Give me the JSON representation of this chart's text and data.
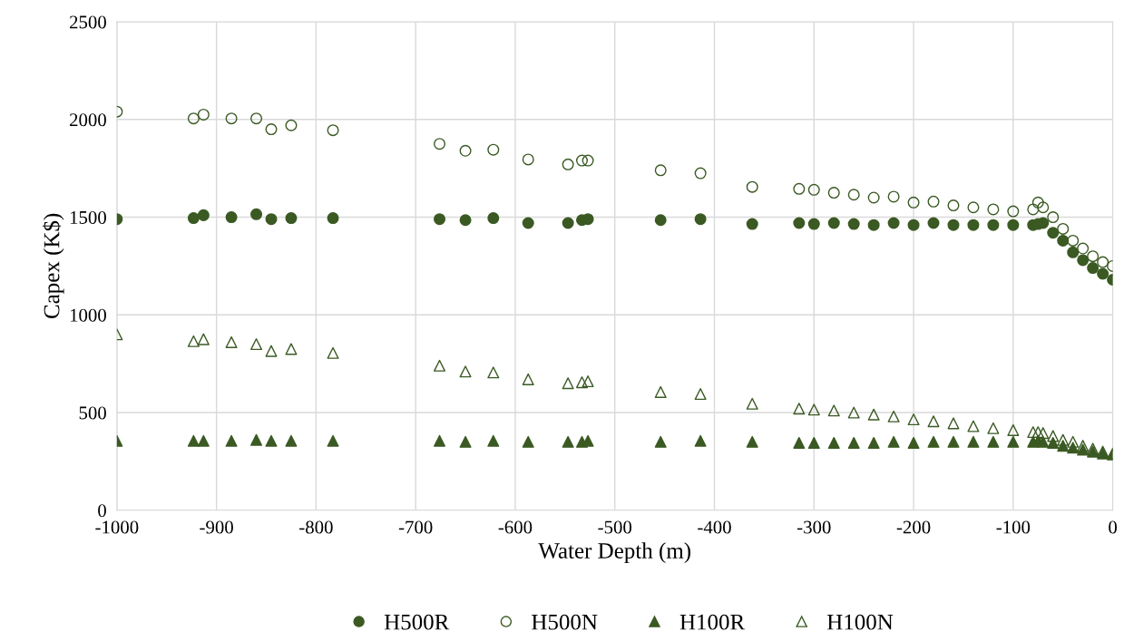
{
  "chart_data": {
    "type": "scatter",
    "xlabel": "Water Depth (m)",
    "ylabel": "Capex (K$)",
    "x": [
      -1000,
      -923,
      -913,
      -885,
      -860,
      -845,
      -825,
      -783,
      -676,
      -650,
      -622,
      -587,
      -547,
      -533,
      -527,
      -454,
      -414,
      -362,
      -315,
      -300,
      -280,
      -260,
      -240,
      -220,
      -200,
      -180,
      -160,
      -140,
      -120,
      -100,
      -80,
      -75,
      -70,
      -60,
      -50,
      -40,
      -30,
      -20,
      -10,
      0
    ],
    "series": [
      {
        "name": "H500R",
        "color": "#3b5a23",
        "marker": "circle",
        "values": [
          1490,
          1495,
          1510,
          1500,
          1515,
          1490,
          1495,
          1495,
          1490,
          1485,
          1495,
          1470,
          1470,
          1485,
          1490,
          1485,
          1490,
          1465,
          1470,
          1465,
          1470,
          1465,
          1460,
          1470,
          1460,
          1470,
          1460,
          1460,
          1460,
          1460,
          1460,
          1465,
          1470,
          1420,
          1380,
          1320,
          1280,
          1240,
          1210,
          1180
        ]
      },
      {
        "name": "H500N",
        "color": "#3b5a23",
        "marker": "circle",
        "values": [
          2040,
          2005,
          2025,
          2005,
          2005,
          1950,
          1970,
          1945,
          1875,
          1840,
          1845,
          1795,
          1770,
          1790,
          1790,
          1740,
          1725,
          1655,
          1645,
          1640,
          1625,
          1615,
          1600,
          1605,
          1575,
          1580,
          1560,
          1550,
          1540,
          1530,
          1540,
          1575,
          1550,
          1500,
          1440,
          1380,
          1340,
          1300,
          1270,
          1250
        ]
      },
      {
        "name": "H100R",
        "color": "#3b5a23",
        "marker": "triangle",
        "values": [
          355,
          355,
          355,
          355,
          360,
          355,
          355,
          355,
          355,
          350,
          355,
          350,
          350,
          350,
          355,
          350,
          355,
          350,
          345,
          345,
          345,
          345,
          345,
          350,
          345,
          350,
          350,
          350,
          350,
          350,
          350,
          355,
          350,
          345,
          330,
          320,
          310,
          300,
          290,
          285
        ]
      },
      {
        "name": "H100N",
        "color": "#3b5a23",
        "marker": "triangle",
        "values": [
          900,
          865,
          875,
          860,
          850,
          815,
          825,
          805,
          740,
          710,
          705,
          670,
          650,
          655,
          660,
          605,
          595,
          545,
          520,
          515,
          510,
          500,
          490,
          480,
          465,
          455,
          445,
          430,
          420,
          410,
          400,
          400,
          395,
          380,
          360,
          350,
          330,
          315,
          300,
          290
        ]
      }
    ],
    "xlim": [
      -1000,
      0
    ],
    "xticks": [
      -1000,
      -900,
      -800,
      -700,
      -600,
      -500,
      -400,
      -300,
      -200,
      -100,
      0
    ],
    "ylim": [
      0,
      2500
    ],
    "yticks": [
      0,
      500,
      1000,
      1500,
      2000,
      2500
    ],
    "grid": true,
    "legend": "bottom"
  }
}
